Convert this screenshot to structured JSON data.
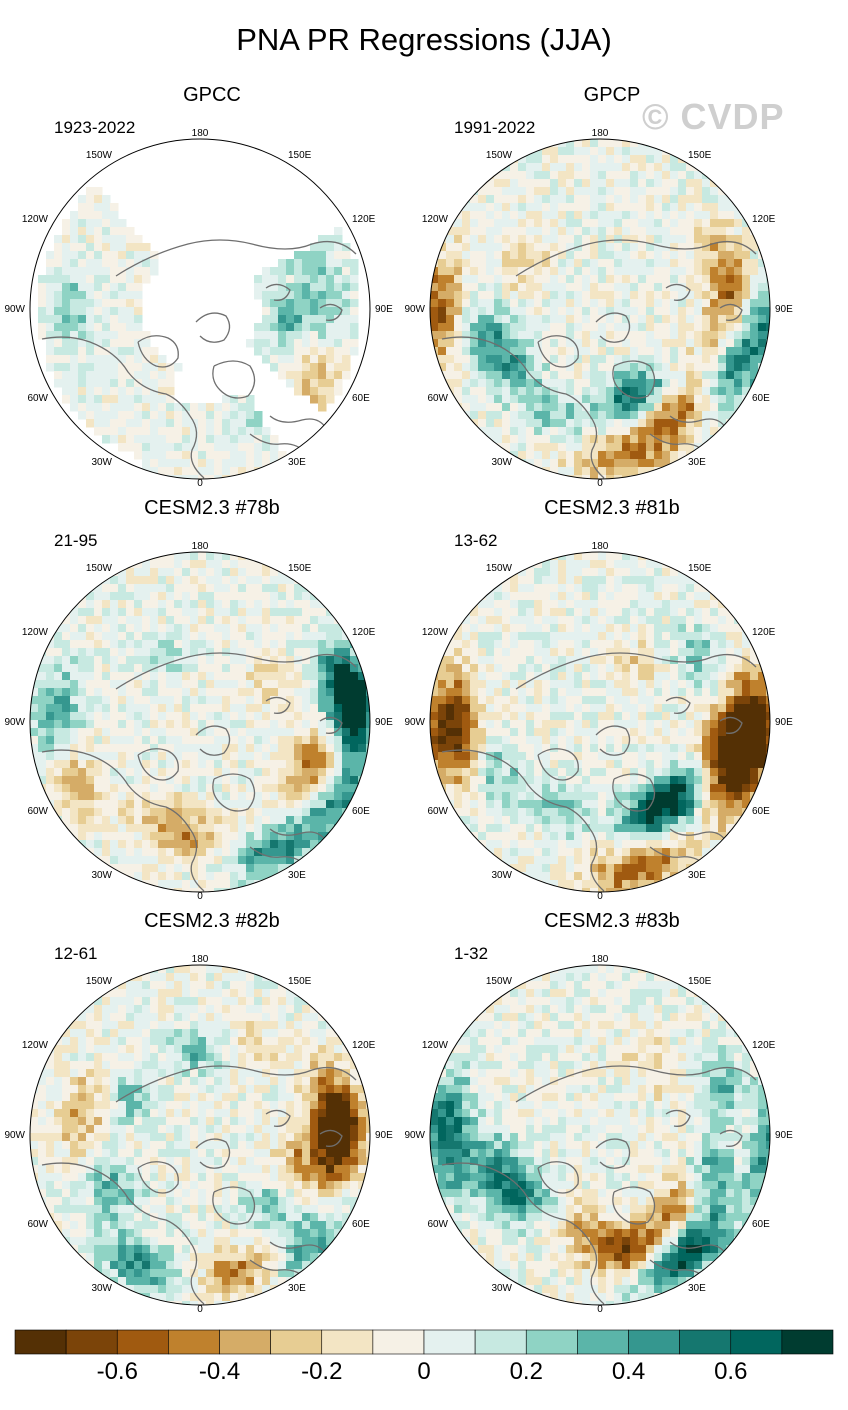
{
  "title": "PNA PR Regressions (JJA)",
  "watermark": "© CVDP",
  "longitude_labels": [
    "180",
    "150E",
    "120E",
    "90E",
    "60E",
    "30E",
    "0",
    "30W",
    "60W",
    "90W",
    "120W",
    "150W"
  ],
  "panels": [
    {
      "name": "GPCC",
      "period": "1923-2022",
      "masked_ocean": true,
      "amp": 0.25,
      "seed": 3,
      "blobs": [
        [
          100,
          0.55,
          0.55
        ],
        [
          105,
          0.62,
          -0.35
        ],
        [
          95,
          0.75,
          0.3
        ],
        [
          270,
          0.75,
          0.25
        ],
        [
          60,
          0.7,
          0.2
        ],
        [
          30,
          0.7,
          -0.15
        ],
        [
          120,
          0.82,
          -0.3
        ],
        [
          150,
          0.7,
          0.15
        ]
      ]
    },
    {
      "name": "GPCP",
      "period": "1991-2022",
      "masked_ocean": false,
      "amp": 0.3,
      "seed": 7,
      "blobs": [
        [
          158,
          0.55,
          0.65
        ],
        [
          145,
          0.75,
          -0.55
        ],
        [
          170,
          0.9,
          -0.4
        ],
        [
          115,
          0.85,
          0.45
        ],
        [
          100,
          0.72,
          -0.3
        ],
        [
          75,
          0.8,
          -0.5
        ],
        [
          270,
          0.95,
          -0.55
        ],
        [
          255,
          0.7,
          0.35
        ],
        [
          240,
          0.6,
          0.3
        ],
        [
          205,
          0.65,
          0.25
        ],
        [
          95,
          0.97,
          0.45
        ],
        [
          300,
          0.55,
          -0.2
        ]
      ]
    },
    {
      "name": "CESM2.3 #78b",
      "period": "21-95",
      "masked_ocean": false,
      "amp": 0.28,
      "seed": 11,
      "blobs": [
        [
          90,
          0.85,
          0.75
        ],
        [
          80,
          0.9,
          0.6
        ],
        [
          100,
          0.8,
          -0.55
        ],
        [
          120,
          0.95,
          0.45
        ],
        [
          115,
          0.7,
          -0.35
        ],
        [
          150,
          0.85,
          0.45
        ],
        [
          270,
          0.85,
          0.5
        ],
        [
          248,
          0.82,
          -0.4
        ],
        [
          200,
          0.6,
          -0.25
        ],
        [
          180,
          0.7,
          -0.3
        ],
        [
          330,
          0.45,
          0.2
        ],
        [
          60,
          0.45,
          -0.2
        ]
      ]
    },
    {
      "name": "CESM2.3 #81b",
      "period": "13-62",
      "masked_ocean": false,
      "amp": 0.3,
      "seed": 17,
      "blobs": [
        [
          165,
          0.9,
          -0.55
        ],
        [
          150,
          0.6,
          0.6
        ],
        [
          130,
          0.65,
          0.55
        ],
        [
          110,
          0.85,
          -0.7
        ],
        [
          90,
          0.9,
          -0.75
        ],
        [
          100,
          0.72,
          -0.5
        ],
        [
          270,
          0.92,
          -0.6
        ],
        [
          262,
          0.8,
          -0.45
        ],
        [
          245,
          0.7,
          0.35
        ],
        [
          205,
          0.55,
          0.3
        ],
        [
          30,
          0.4,
          -0.2
        ],
        [
          60,
          0.7,
          0.25
        ]
      ]
    },
    {
      "name": "CESM2.3 #82b",
      "period": "12-61",
      "masked_ocean": false,
      "amp": 0.3,
      "seed": 23,
      "blobs": [
        [
          160,
          0.85,
          -0.6
        ],
        [
          140,
          0.9,
          0.55
        ],
        [
          130,
          0.6,
          0.45
        ],
        [
          112,
          0.6,
          -0.5
        ],
        [
          92,
          0.82,
          -0.7
        ],
        [
          80,
          0.8,
          -0.5
        ],
        [
          205,
          0.85,
          0.45
        ],
        [
          240,
          0.6,
          0.35
        ],
        [
          280,
          0.7,
          -0.35
        ],
        [
          0,
          0.5,
          0.3
        ],
        [
          300,
          0.45,
          0.3
        ],
        [
          30,
          0.6,
          -0.2
        ]
      ]
    },
    {
      "name": "CESM2.3 #83b",
      "period": "1-32",
      "masked_ocean": false,
      "amp": 0.3,
      "seed": 31,
      "blobs": [
        [
          165,
          0.7,
          -0.7
        ],
        [
          145,
          0.85,
          0.8
        ],
        [
          130,
          0.62,
          -0.5
        ],
        [
          110,
          0.7,
          0.55
        ],
        [
          95,
          0.95,
          0.7
        ],
        [
          90,
          0.85,
          -0.65
        ],
        [
          75,
          0.8,
          0.45
        ],
        [
          270,
          0.9,
          0.65
        ],
        [
          250,
          0.65,
          0.45
        ],
        [
          230,
          0.55,
          0.4
        ],
        [
          190,
          0.55,
          -0.3
        ],
        [
          40,
          0.5,
          -0.2
        ]
      ]
    }
  ],
  "colorbar": {
    "colors": [
      "#543005",
      "#7b4409",
      "#a05a10",
      "#bf812d",
      "#d5ac67",
      "#e7cd93",
      "#f3e5c4",
      "#f6f1e6",
      "#e4f1ef",
      "#c7e9e1",
      "#8fd3c4",
      "#5bb5a9",
      "#35978f",
      "#15776f",
      "#01665e",
      "#003c30"
    ],
    "edges": [
      -0.8,
      -0.7,
      -0.6,
      -0.5,
      -0.4,
      -0.3,
      -0.2,
      -0.1,
      0,
      0.1,
      0.2,
      0.3,
      0.4,
      0.5,
      0.6,
      0.7,
      0.8
    ],
    "labels": [
      "-0.6",
      "-0.4",
      "-0.2",
      "0",
      "0.2",
      "0.4",
      "0.6"
    ],
    "label_values": [
      -0.6,
      -0.4,
      -0.2,
      0,
      0.2,
      0.4,
      0.6
    ]
  }
}
